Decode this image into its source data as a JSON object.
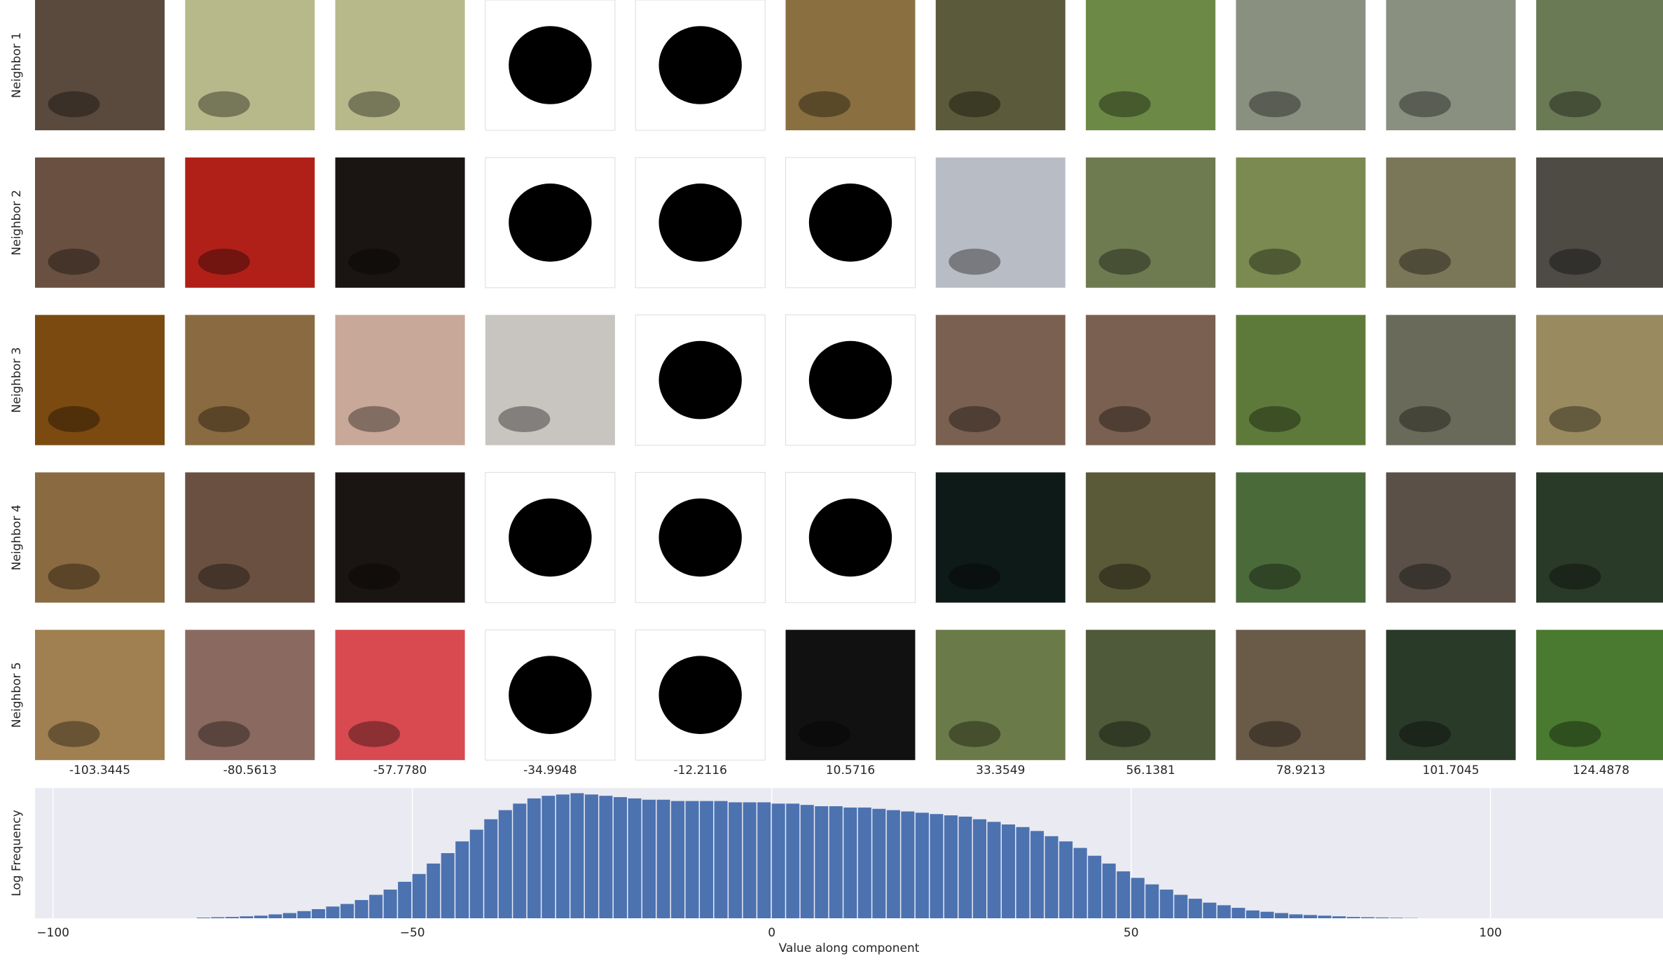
{
  "chart_data": {
    "type": "histogram",
    "row_labels": [
      "Neighbor 1",
      "Neighbor 2",
      "Neighbor 3",
      "Neighbor 4",
      "Neighbor 5"
    ],
    "column_values": [
      -103.3445,
      -80.5613,
      -57.778,
      -34.9948,
      -12.2116,
      10.5716,
      33.3549,
      56.1381,
      78.9213,
      101.7045,
      124.4878
    ],
    "column_labels": [
      "-103.3445",
      "-80.5613",
      "-57.7780",
      "-34.9948",
      "-12.2116",
      "10.5716",
      "33.3549",
      "56.1381",
      "78.9213",
      "101.7045",
      "124.4878"
    ],
    "xlabel": "Value along component",
    "ylabel": "Log Frequency",
    "color": "#4c72b0",
    "grid": true,
    "bins": [
      -80,
      -78,
      -76,
      -74,
      -72,
      -70,
      -68,
      -66,
      -64,
      -62,
      -60,
      -58,
      -56,
      -54,
      -52,
      -50,
      -48,
      -46,
      -44,
      -42,
      -40,
      -38,
      -36,
      -34,
      -32,
      -30,
      -28,
      -26,
      -24,
      -22,
      -20,
      -18,
      -16,
      -14,
      -12,
      -10,
      -8,
      -6,
      -4,
      -2,
      0,
      2,
      4,
      6,
      8,
      10,
      12,
      14,
      16,
      18,
      20,
      22,
      24,
      26,
      28,
      30,
      32,
      34,
      36,
      38,
      40,
      42,
      44,
      46,
      48,
      50,
      52,
      54,
      56,
      58,
      60,
      62,
      64,
      66,
      68,
      70,
      72,
      74,
      76,
      78,
      80,
      82,
      84,
      86,
      88,
      90
    ],
    "values": [
      0.05,
      0.08,
      0.1,
      0.15,
      0.2,
      0.3,
      0.4,
      0.55,
      0.7,
      0.9,
      1.1,
      1.4,
      1.8,
      2.2,
      2.8,
      3.4,
      4.2,
      5.0,
      5.9,
      6.8,
      7.6,
      8.3,
      8.8,
      9.2,
      9.4,
      9.5,
      9.6,
      9.5,
      9.4,
      9.3,
      9.2,
      9.1,
      9.1,
      9.0,
      9.0,
      9.0,
      9.0,
      8.9,
      8.9,
      8.9,
      8.8,
      8.8,
      8.7,
      8.6,
      8.6,
      8.5,
      8.5,
      8.4,
      8.3,
      8.2,
      8.1,
      8.0,
      7.9,
      7.8,
      7.6,
      7.4,
      7.2,
      7.0,
      6.7,
      6.3,
      5.9,
      5.4,
      4.8,
      4.2,
      3.6,
      3.1,
      2.6,
      2.2,
      1.8,
      1.5,
      1.2,
      1.0,
      0.8,
      0.6,
      0.5,
      0.4,
      0.3,
      0.25,
      0.2,
      0.15,
      0.1,
      0.08,
      0.06,
      0.04,
      0.02
    ],
    "xlim": [
      -102.5,
      124
    ],
    "ylim": [
      0,
      10
    ],
    "xticks": [
      {
        "value": -100,
        "label": "−100"
      },
      {
        "value": -50,
        "label": "−50"
      },
      0,
      50,
      100
    ]
  }
}
